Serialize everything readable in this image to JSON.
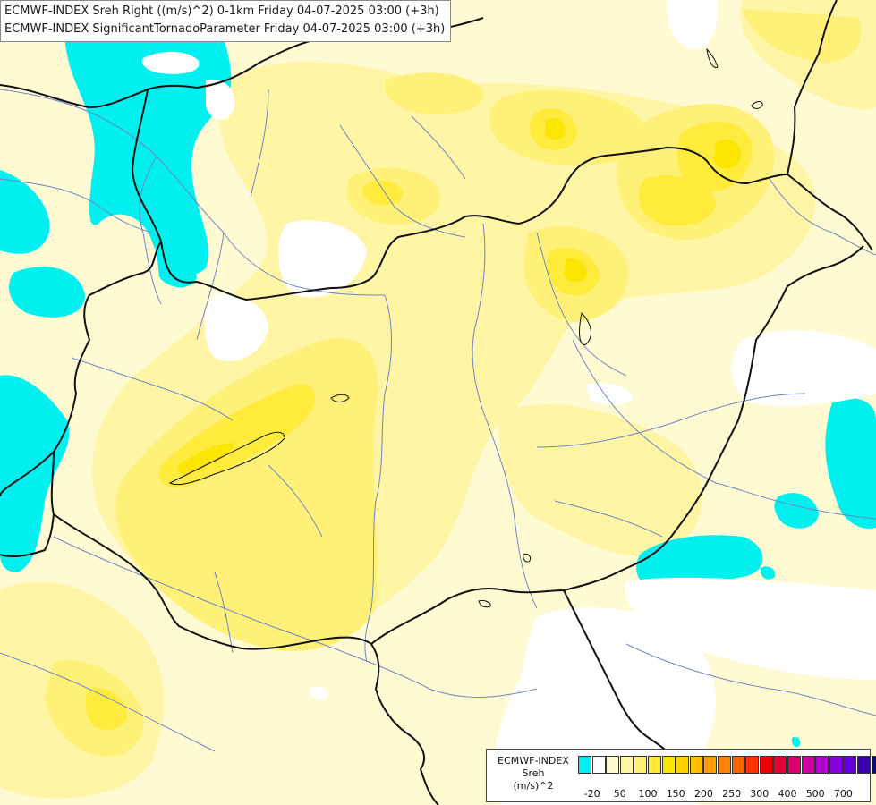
{
  "titles": {
    "line1": "ECMWF-INDEX Sreh Right ((m/s)^2) 0-1km Friday 04-07-2025 03:00 (+3h)",
    "line2": "ECMWF-INDEX SignificantTornadoParameter Friday 04-07-2025 03:00 (+3h)"
  },
  "legend": {
    "source": "ECMWF-INDEX",
    "variable": "Sreh",
    "unit": "(m/s)^2",
    "colors": [
      "#00f0f0",
      "#ffffff",
      "#fffad2",
      "#fff5a5",
      "#fff078",
      "#ffeb3c",
      "#fae600",
      "#ffd200",
      "#ffbe00",
      "#ffa000",
      "#ff8200",
      "#ff6400",
      "#ff3200",
      "#f00000",
      "#e60032",
      "#dc006e",
      "#d200a0",
      "#b400d2",
      "#8c00dc",
      "#6400dc",
      "#3c00b4",
      "#0a0a7a"
    ],
    "ticks": [
      "-20",
      "50",
      "100",
      "150",
      "200",
      "250",
      "300",
      "400",
      "500",
      "700"
    ]
  },
  "colors": {
    "cyan": "#00f0f0",
    "pale_yellow": "#fffad2",
    "light_yellow": "#fff5a5",
    "yellow": "#fff078",
    "strong_yellow": "#ffeb3c",
    "gold": "#fae600",
    "orange_gold": "#ffd200",
    "border": "#111111",
    "river": "#6e86c8"
  }
}
